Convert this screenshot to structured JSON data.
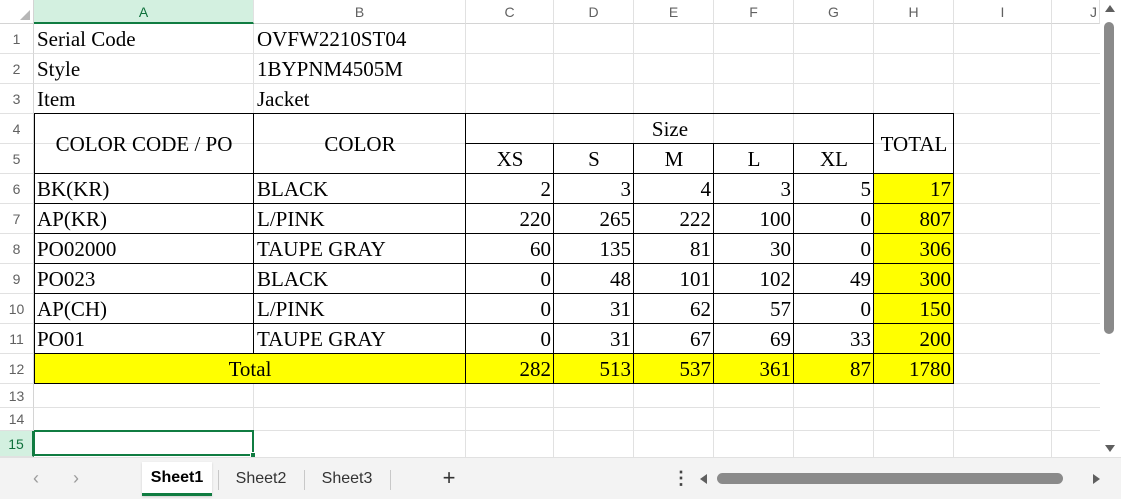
{
  "columns": [
    "A",
    "B",
    "C",
    "D",
    "E",
    "F",
    "G",
    "H",
    "I",
    "J"
  ],
  "rows": [
    "1",
    "2",
    "3",
    "4",
    "5",
    "6",
    "7",
    "8",
    "9",
    "10",
    "11",
    "12",
    "13",
    "14",
    "15"
  ],
  "active_cell": "A15",
  "info": {
    "serial_label": "Serial Code",
    "serial_value": "OVFW2210ST04",
    "style_label": "Style",
    "style_value": "1BYPNM4505M",
    "item_label": "Item",
    "item_value": "Jacket"
  },
  "table_header": {
    "color_code_po": "COLOR CODE / PO",
    "color": "COLOR",
    "size": "Size",
    "sizes": [
      "XS",
      "S",
      "M",
      "L",
      "XL"
    ],
    "total": "TOTAL"
  },
  "table_rows": [
    {
      "code": "BK(KR)",
      "color": "BLACK",
      "xs": "2",
      "s": "3",
      "m": "4",
      "l": "3",
      "xl": "5",
      "total": "17"
    },
    {
      "code": "AP(KR)",
      "color": "L/PINK",
      "xs": "220",
      "s": "265",
      "m": "222",
      "l": "100",
      "xl": "0",
      "total": "807"
    },
    {
      "code": "PO02000",
      "color": "TAUPE GRAY",
      "xs": "60",
      "s": "135",
      "m": "81",
      "l": "30",
      "xl": "0",
      "total": "306"
    },
    {
      "code": "PO023",
      "color": "BLACK",
      "xs": "0",
      "s": "48",
      "m": "101",
      "l": "102",
      "xl": "49",
      "total": "300"
    },
    {
      "code": "AP(CH)",
      "color": "L/PINK",
      "xs": "0",
      "s": "31",
      "m": "62",
      "l": "57",
      "xl": "0",
      "total": "150"
    },
    {
      "code": "PO01",
      "color": "TAUPE GRAY",
      "xs": "0",
      "s": "31",
      "m": "67",
      "l": "69",
      "xl": "33",
      "total": "200"
    }
  ],
  "totals_row": {
    "label": "Total",
    "xs": "282",
    "s": "513",
    "m": "537",
    "l": "361",
    "xl": "87",
    "total": "1780"
  },
  "sheet_tabs": [
    {
      "label": "Sheet1",
      "active": true
    },
    {
      "label": "Sheet2",
      "active": false
    },
    {
      "label": "Sheet3",
      "active": false
    }
  ],
  "controls": {
    "prev_sheet_icon": "‹",
    "next_sheet_icon": "›",
    "add_sheet_icon": "+",
    "more_icon": "⋮"
  },
  "colors": {
    "highlight": "#ffff00",
    "accent": "#107c41",
    "gridline": "#e1e1e1"
  }
}
